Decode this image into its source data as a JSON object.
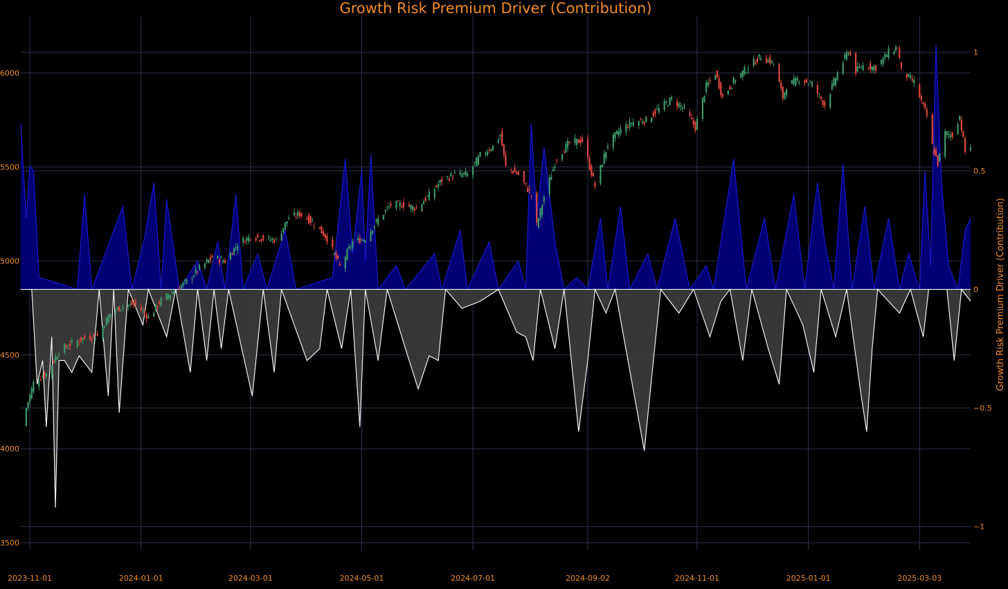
{
  "colors": {
    "background": "#000000",
    "text": "#f28c28",
    "grid": "#2e3450",
    "up_candle": "#3f9a6c",
    "down_candle": "#e0473f",
    "positive_fill": "#00007a",
    "positive_line": "#1a1ad0",
    "negative_fill": "#3a3a3a",
    "negative_line": "#f2f2f2"
  },
  "chart_data": {
    "type": "line",
    "title": "Growth Risk Premium Driver (Contribution)",
    "xlabel": "",
    "ylabel": "",
    "y2label": "Growth Risk Premium Driver (Contribution)",
    "x_ticks": [
      "2023-11-01",
      "2024-01-01",
      "2024-03-01",
      "2024-05-01",
      "2024-07-01",
      "2024-09-02",
      "2024-11-01",
      "2025-01-01",
      "2025-03-03"
    ],
    "x_range": [
      "2023-10-27",
      "2025-03-31"
    ],
    "y_left_ticks": [
      3500,
      4000,
      4500,
      5000,
      5500,
      6000
    ],
    "y_left_range": [
      3460,
      6300
    ],
    "y_right_ticks": [
      -1,
      -0.5,
      0,
      0.5,
      1
    ],
    "y_right_range": [
      -1.1,
      1.15
    ],
    "grid": true,
    "series": [
      {
        "kind": "candlestick",
        "close_points": [
          [
            "2023-10-27",
            4120
          ],
          [
            "2023-11-03",
            4350
          ],
          [
            "2023-11-10",
            4400
          ],
          [
            "2023-11-17",
            4520
          ],
          [
            "2023-11-24",
            4560
          ],
          [
            "2023-12-01",
            4590
          ],
          [
            "2023-12-08",
            4600
          ],
          [
            "2023-12-15",
            4720
          ],
          [
            "2023-12-22",
            4760
          ],
          [
            "2023-12-29",
            4770
          ],
          [
            "2024-01-05",
            4700
          ],
          [
            "2024-01-12",
            4790
          ],
          [
            "2024-01-19",
            4840
          ],
          [
            "2024-01-26",
            4890
          ],
          [
            "2024-02-02",
            4960
          ],
          [
            "2024-02-09",
            5020
          ],
          [
            "2024-02-16",
            5000
          ],
          [
            "2024-02-23",
            5090
          ],
          [
            "2024-03-01",
            5130
          ],
          [
            "2024-03-08",
            5120
          ],
          [
            "2024-03-15",
            5110
          ],
          [
            "2024-03-22",
            5230
          ],
          [
            "2024-03-28",
            5250
          ],
          [
            "2024-04-05",
            5200
          ],
          [
            "2024-04-12",
            5120
          ],
          [
            "2024-04-19",
            4970
          ],
          [
            "2024-04-26",
            5100
          ],
          [
            "2024-05-03",
            5120
          ],
          [
            "2024-05-10",
            5220
          ],
          [
            "2024-05-17",
            5300
          ],
          [
            "2024-05-24",
            5300
          ],
          [
            "2024-05-31",
            5280
          ],
          [
            "2024-06-07",
            5350
          ],
          [
            "2024-06-14",
            5430
          ],
          [
            "2024-06-21",
            5460
          ],
          [
            "2024-06-28",
            5460
          ],
          [
            "2024-07-05",
            5560
          ],
          [
            "2024-07-12",
            5610
          ],
          [
            "2024-07-16",
            5670
          ],
          [
            "2024-07-19",
            5500
          ],
          [
            "2024-07-26",
            5460
          ],
          [
            "2024-08-02",
            5350
          ],
          [
            "2024-08-05",
            5190
          ],
          [
            "2024-08-09",
            5340
          ],
          [
            "2024-08-16",
            5550
          ],
          [
            "2024-08-23",
            5630
          ],
          [
            "2024-08-30",
            5640
          ],
          [
            "2024-09-06",
            5400
          ],
          [
            "2024-09-13",
            5620
          ],
          [
            "2024-09-20",
            5700
          ],
          [
            "2024-09-27",
            5740
          ],
          [
            "2024-10-04",
            5750
          ],
          [
            "2024-10-11",
            5810
          ],
          [
            "2024-10-18",
            5860
          ],
          [
            "2024-10-25",
            5810
          ],
          [
            "2024-10-31",
            5710
          ],
          [
            "2024-11-06",
            5930
          ],
          [
            "2024-11-11",
            6000
          ],
          [
            "2024-11-15",
            5870
          ],
          [
            "2024-11-22",
            5970
          ],
          [
            "2024-11-29",
            6030
          ],
          [
            "2024-12-06",
            6090
          ],
          [
            "2024-12-13",
            6050
          ],
          [
            "2024-12-18",
            5870
          ],
          [
            "2024-12-20",
            5930
          ],
          [
            "2024-12-27",
            5970
          ],
          [
            "2025-01-03",
            5940
          ],
          [
            "2025-01-10",
            5830
          ],
          [
            "2025-01-17",
            6000
          ],
          [
            "2025-01-23",
            6120
          ],
          [
            "2025-01-27",
            6010
          ],
          [
            "2025-01-31",
            6040
          ],
          [
            "2025-02-07",
            6030
          ],
          [
            "2025-02-14",
            6110
          ],
          [
            "2025-02-19",
            6140
          ],
          [
            "2025-02-21",
            6010
          ],
          [
            "2025-02-28",
            5950
          ],
          [
            "2025-03-07",
            5770
          ],
          [
            "2025-03-10",
            5610
          ],
          [
            "2025-03-13",
            5520
          ],
          [
            "2025-03-17",
            5680
          ],
          [
            "2025-03-21",
            5670
          ],
          [
            "2025-03-25",
            5770
          ],
          [
            "2025-03-28",
            5580
          ],
          [
            "2025-03-31",
            5610
          ]
        ]
      },
      {
        "kind": "area_positive",
        "axis": "right",
        "points": [
          [
            "2023-10-27",
            0.7
          ],
          [
            "2023-10-30",
            0.3
          ],
          [
            "2023-11-01",
            0.52
          ],
          [
            "2023-11-03",
            0.5
          ],
          [
            "2023-11-06",
            0.05
          ],
          [
            "2023-11-15",
            0.03
          ],
          [
            "2023-11-27",
            0.0
          ],
          [
            "2023-12-01",
            0.4
          ],
          [
            "2023-12-05",
            0.0
          ],
          [
            "2023-12-22",
            0.35
          ],
          [
            "2023-12-27",
            0.0
          ],
          [
            "2024-01-03",
            0.22
          ],
          [
            "2024-01-08",
            0.45
          ],
          [
            "2024-01-12",
            0.0
          ],
          [
            "2024-01-15",
            0.38
          ],
          [
            "2024-01-22",
            0.0
          ],
          [
            "2024-02-01",
            0.12
          ],
          [
            "2024-02-06",
            0.0
          ],
          [
            "2024-02-12",
            0.2
          ],
          [
            "2024-02-16",
            0.0
          ],
          [
            "2024-02-22",
            0.4
          ],
          [
            "2024-02-26",
            0.0
          ],
          [
            "2024-03-05",
            0.15
          ],
          [
            "2024-03-10",
            0.0
          ],
          [
            "2024-03-20",
            0.25
          ],
          [
            "2024-03-26",
            0.0
          ],
          [
            "2024-04-15",
            0.05
          ],
          [
            "2024-04-22",
            0.55
          ],
          [
            "2024-04-26",
            0.15
          ],
          [
            "2024-05-01",
            0.5
          ],
          [
            "2024-05-03",
            0.12
          ],
          [
            "2024-05-06",
            0.57
          ],
          [
            "2024-05-10",
            0.0
          ],
          [
            "2024-05-20",
            0.1
          ],
          [
            "2024-05-25",
            0.0
          ],
          [
            "2024-06-10",
            0.15
          ],
          [
            "2024-06-14",
            0.0
          ],
          [
            "2024-06-24",
            0.25
          ],
          [
            "2024-06-28",
            0.0
          ],
          [
            "2024-07-10",
            0.2
          ],
          [
            "2024-07-15",
            0.0
          ],
          [
            "2024-07-26",
            0.12
          ],
          [
            "2024-07-30",
            0.0
          ],
          [
            "2024-08-02",
            0.7
          ],
          [
            "2024-08-05",
            0.3
          ],
          [
            "2024-08-09",
            0.6
          ],
          [
            "2024-08-15",
            0.2
          ],
          [
            "2024-08-20",
            0.0
          ],
          [
            "2024-08-27",
            0.05
          ],
          [
            "2024-09-02",
            0.0
          ],
          [
            "2024-09-09",
            0.3
          ],
          [
            "2024-09-13",
            0.0
          ],
          [
            "2024-09-20",
            0.35
          ],
          [
            "2024-09-25",
            0.0
          ],
          [
            "2024-10-05",
            0.15
          ],
          [
            "2024-10-10",
            0.0
          ],
          [
            "2024-10-20",
            0.3
          ],
          [
            "2024-10-28",
            0.0
          ],
          [
            "2024-11-06",
            0.1
          ],
          [
            "2024-11-10",
            0.0
          ],
          [
            "2024-11-21",
            0.55
          ],
          [
            "2024-11-28",
            0.0
          ],
          [
            "2024-12-08",
            0.3
          ],
          [
            "2024-12-14",
            0.0
          ],
          [
            "2024-12-24",
            0.4
          ],
          [
            "2024-12-30",
            0.0
          ],
          [
            "2025-01-06",
            0.45
          ],
          [
            "2025-01-10",
            0.2
          ],
          [
            "2025-01-15",
            0.0
          ],
          [
            "2025-01-20",
            0.53
          ],
          [
            "2025-01-25",
            0.0
          ],
          [
            "2025-02-01",
            0.35
          ],
          [
            "2025-02-06",
            0.0
          ],
          [
            "2025-02-14",
            0.3
          ],
          [
            "2025-02-20",
            0.0
          ],
          [
            "2025-02-25",
            0.15
          ],
          [
            "2025-03-03",
            0.0
          ],
          [
            "2025-03-06",
            0.5
          ],
          [
            "2025-03-09",
            0.1
          ],
          [
            "2025-03-12",
            1.03
          ],
          [
            "2025-03-15",
            0.45
          ],
          [
            "2025-03-19",
            0.1
          ],
          [
            "2025-03-24",
            0.0
          ],
          [
            "2025-03-28",
            0.25
          ],
          [
            "2025-03-31",
            0.3
          ]
        ]
      },
      {
        "kind": "area_negative",
        "axis": "right",
        "points": [
          [
            "2023-10-27",
            0.0
          ],
          [
            "2023-11-02",
            0.0
          ],
          [
            "2023-11-05",
            -0.4
          ],
          [
            "2023-11-08",
            -0.3
          ],
          [
            "2023-11-10",
            -0.58
          ],
          [
            "2023-11-13",
            -0.2
          ],
          [
            "2023-11-15",
            -0.92
          ],
          [
            "2023-11-17",
            -0.3
          ],
          [
            "2023-11-20",
            -0.3
          ],
          [
            "2023-11-24",
            -0.35
          ],
          [
            "2023-11-28",
            -0.28
          ],
          [
            "2023-12-05",
            -0.35
          ],
          [
            "2023-12-09",
            0.0
          ],
          [
            "2023-12-14",
            -0.45
          ],
          [
            "2023-12-17",
            0.0
          ],
          [
            "2023-12-20",
            -0.52
          ],
          [
            "2023-12-25",
            0.0
          ],
          [
            "2024-01-02",
            -0.15
          ],
          [
            "2024-01-05",
            0.0
          ],
          [
            "2024-01-15",
            -0.2
          ],
          [
            "2024-01-20",
            0.0
          ],
          [
            "2024-01-28",
            -0.35
          ],
          [
            "2024-02-01",
            0.0
          ],
          [
            "2024-02-06",
            -0.3
          ],
          [
            "2024-02-10",
            0.0
          ],
          [
            "2024-02-14",
            -0.25
          ],
          [
            "2024-02-18",
            0.0
          ],
          [
            "2024-03-02",
            -0.45
          ],
          [
            "2024-03-08",
            0.0
          ],
          [
            "2024-03-14",
            -0.35
          ],
          [
            "2024-03-18",
            0.0
          ],
          [
            "2024-04-01",
            -0.3
          ],
          [
            "2024-04-08",
            -0.25
          ],
          [
            "2024-04-12",
            0.0
          ],
          [
            "2024-04-20",
            -0.25
          ],
          [
            "2024-04-25",
            0.0
          ],
          [
            "2024-04-30",
            -0.58
          ],
          [
            "2024-05-03",
            0.0
          ],
          [
            "2024-05-10",
            -0.3
          ],
          [
            "2024-05-15",
            0.0
          ],
          [
            "2024-05-25",
            -0.25
          ],
          [
            "2024-06-01",
            -0.42
          ],
          [
            "2024-06-07",
            -0.28
          ],
          [
            "2024-06-12",
            -0.3
          ],
          [
            "2024-06-16",
            0.0
          ],
          [
            "2024-06-25",
            -0.08
          ],
          [
            "2024-07-05",
            -0.05
          ],
          [
            "2024-07-15",
            0.0
          ],
          [
            "2024-07-25",
            -0.18
          ],
          [
            "2024-07-30",
            -0.2
          ],
          [
            "2024-08-03",
            -0.3
          ],
          [
            "2024-08-07",
            0.0
          ],
          [
            "2024-08-15",
            -0.25
          ],
          [
            "2024-08-20",
            0.0
          ],
          [
            "2024-08-28",
            -0.6
          ],
          [
            "2024-09-02",
            -0.3
          ],
          [
            "2024-09-06",
            0.0
          ],
          [
            "2024-09-12",
            -0.1
          ],
          [
            "2024-09-17",
            0.0
          ],
          [
            "2024-10-03",
            -0.68
          ],
          [
            "2024-10-08",
            -0.3
          ],
          [
            "2024-10-12",
            0.0
          ],
          [
            "2024-10-22",
            -0.1
          ],
          [
            "2024-10-30",
            0.0
          ],
          [
            "2024-11-08",
            -0.2
          ],
          [
            "2024-11-14",
            -0.05
          ],
          [
            "2024-11-19",
            0.0
          ],
          [
            "2024-11-26",
            -0.3
          ],
          [
            "2024-12-01",
            0.0
          ],
          [
            "2024-12-10",
            -0.25
          ],
          [
            "2024-12-16",
            -0.4
          ],
          [
            "2024-12-20",
            0.0
          ],
          [
            "2024-12-29",
            -0.15
          ],
          [
            "2025-01-04",
            -0.35
          ],
          [
            "2025-01-08",
            0.0
          ],
          [
            "2025-01-16",
            -0.2
          ],
          [
            "2025-01-22",
            0.0
          ],
          [
            "2025-01-30",
            -0.45
          ],
          [
            "2025-02-02",
            -0.6
          ],
          [
            "2025-02-05",
            -0.25
          ],
          [
            "2025-02-08",
            0.0
          ],
          [
            "2025-02-20",
            -0.1
          ],
          [
            "2025-02-26",
            0.0
          ],
          [
            "2025-03-05",
            -0.2
          ],
          [
            "2025-03-08",
            0.0
          ],
          [
            "2025-03-18",
            0.0
          ],
          [
            "2025-03-22",
            -0.3
          ],
          [
            "2025-03-26",
            0.0
          ],
          [
            "2025-03-31",
            -0.05
          ]
        ]
      }
    ]
  }
}
